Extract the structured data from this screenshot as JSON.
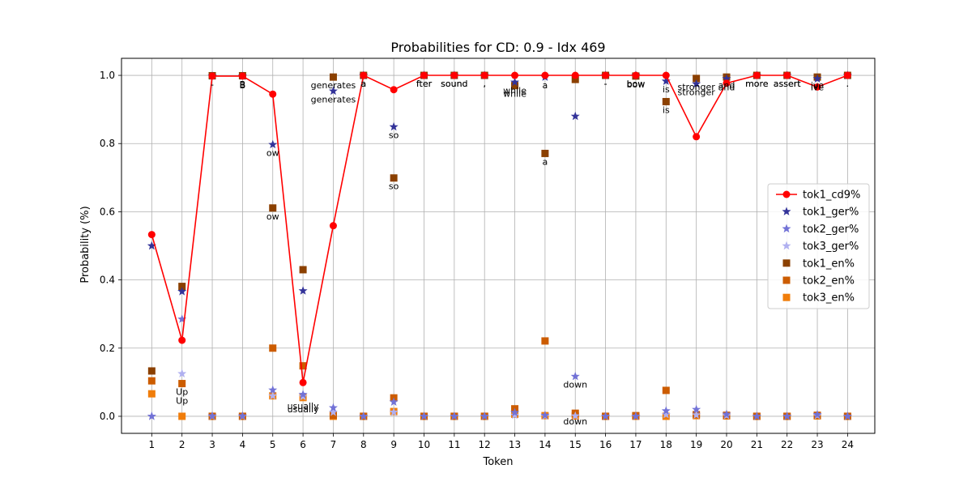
{
  "chart_data": {
    "type": "line",
    "title": "Probabilities for CD: 0.9 - Idx 469",
    "xlabel": "Token",
    "ylabel": "Probability (%)",
    "x": [
      1,
      2,
      3,
      4,
      5,
      6,
      7,
      8,
      9,
      10,
      11,
      12,
      13,
      14,
      15,
      16,
      17,
      18,
      19,
      20,
      21,
      22,
      23,
      24
    ],
    "xlim": [
      0.0,
      24.9
    ],
    "ylim": [
      -0.05,
      1.05
    ],
    "yticks": [
      0.0,
      0.2,
      0.4,
      0.6,
      0.8,
      1.0
    ],
    "ytick_labels": [
      "0.0",
      "0.2",
      "0.4",
      "0.6",
      "0.8",
      "1.0"
    ],
    "grid": true,
    "legend_position": "center-right",
    "series": [
      {
        "name": "tok1_cd9%",
        "marker": "circle",
        "line": true,
        "color": "#ff0000",
        "values": [
          0.533,
          0.223,
          0.998,
          0.998,
          0.945,
          0.099,
          0.559,
          1.0,
          0.958,
          1.0,
          1.0,
          1.0,
          1.0,
          1.0,
          1.0,
          1.0,
          1.0,
          1.0,
          0.82,
          0.977,
          1.0,
          1.0,
          0.966,
          1.0
        ]
      },
      {
        "name": "tok1_ger%",
        "marker": "star",
        "line": false,
        "color": "#333399",
        "values": [
          0.5,
          0.366,
          0.998,
          0.998,
          0.797,
          0.368,
          0.954,
          1.0,
          0.849,
          1.0,
          1.0,
          1.0,
          0.98,
          0.995,
          0.88,
          1.0,
          1.0,
          0.983,
          0.975,
          0.99,
          1.0,
          1.0,
          0.99,
          1.0
        ]
      },
      {
        "name": "tok2_ger%",
        "marker": "star",
        "line": false,
        "color": "#7272d6",
        "values": [
          0.0,
          0.285,
          0.001,
          0.001,
          0.077,
          0.064,
          0.025,
          0.0,
          0.042,
          0.0,
          0.0,
          0.0,
          0.011,
          0.003,
          0.117,
          0.0,
          0.0,
          0.016,
          0.02,
          0.006,
          0.0,
          0.0,
          0.005,
          0.0
        ]
      },
      {
        "name": "tok3_ger%",
        "marker": "star",
        "line": false,
        "color": "#b0b0f0",
        "values": [
          0.0,
          0.125,
          0.0,
          0.0,
          0.06,
          0.058,
          0.012,
          0.0,
          0.012,
          0.0,
          0.0,
          0.0,
          0.003,
          0.001,
          0.001,
          0.0,
          0.0,
          0.005,
          0.004,
          0.002,
          0.0,
          0.0,
          0.002,
          0.0
        ]
      },
      {
        "name": "tok1_en%",
        "marker": "square",
        "line": false,
        "color": "#8b4000",
        "values": [
          0.133,
          0.381,
          0.999,
          0.999,
          0.611,
          0.43,
          0.995,
          1.0,
          0.699,
          1.0,
          1.0,
          1.0,
          0.97,
          0.771,
          0.988,
          1.0,
          0.998,
          0.923,
          0.991,
          0.995,
          1.0,
          1.0,
          0.995,
          1.0
        ]
      },
      {
        "name": "tok2_en%",
        "marker": "square",
        "line": false,
        "color": "#cc5c00",
        "values": [
          0.104,
          0.096,
          0.0,
          0.0,
          0.2,
          0.148,
          0.003,
          0.0,
          0.054,
          0.0,
          0.0,
          0.0,
          0.022,
          0.221,
          0.009,
          0.0,
          0.002,
          0.076,
          0.005,
          0.003,
          0.0,
          0.0,
          0.003,
          0.0
        ]
      },
      {
        "name": "tok3_en%",
        "marker": "square",
        "line": false,
        "color": "#f07d0a",
        "values": [
          0.066,
          0.0,
          0.0,
          0.0,
          0.06,
          0.055,
          0.0,
          0.0,
          0.014,
          0.0,
          0.0,
          0.0,
          0.006,
          0.002,
          0.001,
          0.0,
          0.0,
          0.0,
          0.002,
          0.001,
          0.0,
          0.0,
          0.001,
          0.0
        ]
      }
    ],
    "annotations": [
      {
        "text": "Up",
        "x": 2,
        "y": 0.096
      },
      {
        "text": "Up",
        "x": 2,
        "y": 0.07
      },
      {
        "text": "-",
        "x": 3,
        "y": 0.998
      },
      {
        "text": "B",
        "x": 4,
        "y": 0.998
      },
      {
        "text": "B",
        "x": 4,
        "y": 0.995
      },
      {
        "text": "ow",
        "x": 5,
        "y": 0.797
      },
      {
        "text": "ow",
        "x": 5,
        "y": 0.611
      },
      {
        "text": "usually",
        "x": 6,
        "y": 0.055
      },
      {
        "text": "usually",
        "x": 6,
        "y": 0.045
      },
      {
        "text": "generates",
        "x": 7,
        "y": 0.995
      },
      {
        "text": "generates",
        "x": 7,
        "y": 0.954
      },
      {
        "text": "a",
        "x": 8,
        "y": 1.0
      },
      {
        "text": "a",
        "x": 8,
        "y": 1.0
      },
      {
        "text": "so",
        "x": 9,
        "y": 0.849
      },
      {
        "text": "so",
        "x": 9,
        "y": 0.699
      },
      {
        "text": "fter",
        "x": 10,
        "y": 1.0
      },
      {
        "text": "fter",
        "x": 10,
        "y": 1.0
      },
      {
        "text": "sound",
        "x": 11,
        "y": 1.0
      },
      {
        "text": "sound",
        "x": 11,
        "y": 1.0
      },
      {
        "text": ",",
        "x": 12,
        "y": 1.0
      },
      {
        "text": ",",
        "x": 12,
        "y": 1.0
      },
      {
        "text": "while",
        "x": 13,
        "y": 0.98
      },
      {
        "text": "while",
        "x": 13,
        "y": 0.97
      },
      {
        "text": "a",
        "x": 14,
        "y": 0.995
      },
      {
        "text": "a",
        "x": 14,
        "y": 0.771
      },
      {
        "text": "down",
        "x": 15,
        "y": 0.117
      },
      {
        "text": "down",
        "x": 15,
        "y": 0.009
      },
      {
        "text": "-",
        "x": 16,
        "y": 1.0
      },
      {
        "text": "-",
        "x": 16,
        "y": 1.0
      },
      {
        "text": "bow",
        "x": 17,
        "y": 1.0
      },
      {
        "text": "bow",
        "x": 17,
        "y": 0.998
      },
      {
        "text": "is",
        "x": 18,
        "y": 0.983
      },
      {
        "text": "is",
        "x": 18,
        "y": 0.923
      },
      {
        "text": "stronger",
        "x": 19,
        "y": 0.991
      },
      {
        "text": "stronger",
        "x": 19,
        "y": 0.975
      },
      {
        "text": "and",
        "x": 20,
        "y": 0.995
      },
      {
        "text": "and",
        "x": 20,
        "y": 0.99
      },
      {
        "text": "more",
        "x": 21,
        "y": 1.0
      },
      {
        "text": "more",
        "x": 21,
        "y": 1.0
      },
      {
        "text": "assert",
        "x": 22,
        "y": 1.0
      },
      {
        "text": "assert",
        "x": 22,
        "y": 1.0
      },
      {
        "text": "ive",
        "x": 23,
        "y": 0.995
      },
      {
        "text": "ive",
        "x": 23,
        "y": 0.99
      },
      {
        "text": ".",
        "x": 24,
        "y": 1.0
      },
      {
        "text": ".",
        "x": 24,
        "y": 1.0
      }
    ]
  }
}
